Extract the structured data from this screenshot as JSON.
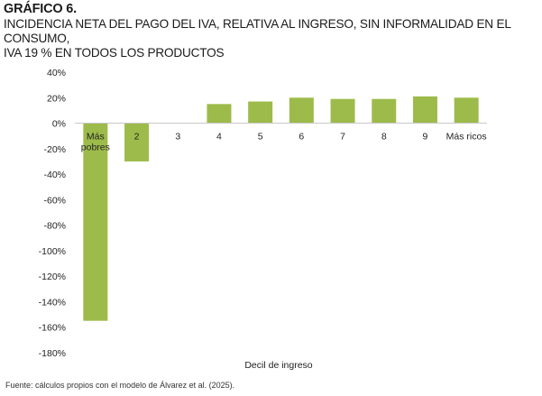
{
  "header": {
    "kicker": "GRÁFICO 6.",
    "title_lines": [
      "INCIDENCIA NETA DEL PAGO DEL IVA, RELATIVA AL INGRESO, SIN INFORMALIDAD EN EL CONSUMO,",
      "IVA 19 % EN TODOS LOS PRODUCTOS"
    ]
  },
  "footnote": "Fuente: cálculos propios con el modelo de Álvarez et al. (2025).",
  "chart_data": {
    "type": "bar",
    "title": "INCIDENCIA NETA DEL PAGO DEL IVA, RELATIVA AL INGRESO, SIN INFORMALIDAD EN EL CONSUMO, IVA 19 % EN TODOS LOS PRODUCTOS",
    "xlabel": "Decil de ingreso",
    "ylabel": "",
    "categories": [
      [
        "Más",
        "pobres"
      ],
      [
        "2"
      ],
      [
        "3"
      ],
      [
        "4"
      ],
      [
        "5"
      ],
      [
        "6"
      ],
      [
        "7"
      ],
      [
        "8"
      ],
      [
        "9"
      ],
      [
        "Más ricos"
      ]
    ],
    "values": [
      -155,
      -30,
      0,
      15,
      17,
      20,
      19,
      19,
      21,
      20
    ],
    "ylim": [
      -180,
      40
    ],
    "yticks": [
      40,
      20,
      0,
      -20,
      -40,
      -60,
      -80,
      -100,
      -120,
      -140,
      -160,
      -180
    ],
    "ytick_labels": [
      "40%",
      "20%",
      "0%",
      "-20%",
      "-40%",
      "-60%",
      "-80%",
      "-100%",
      "-120%",
      "-140%",
      "-160%",
      "-180%"
    ],
    "grid": false,
    "legend": "none",
    "bar_color": "#9dbb4a",
    "axis_color": "#c8c8c8"
  }
}
